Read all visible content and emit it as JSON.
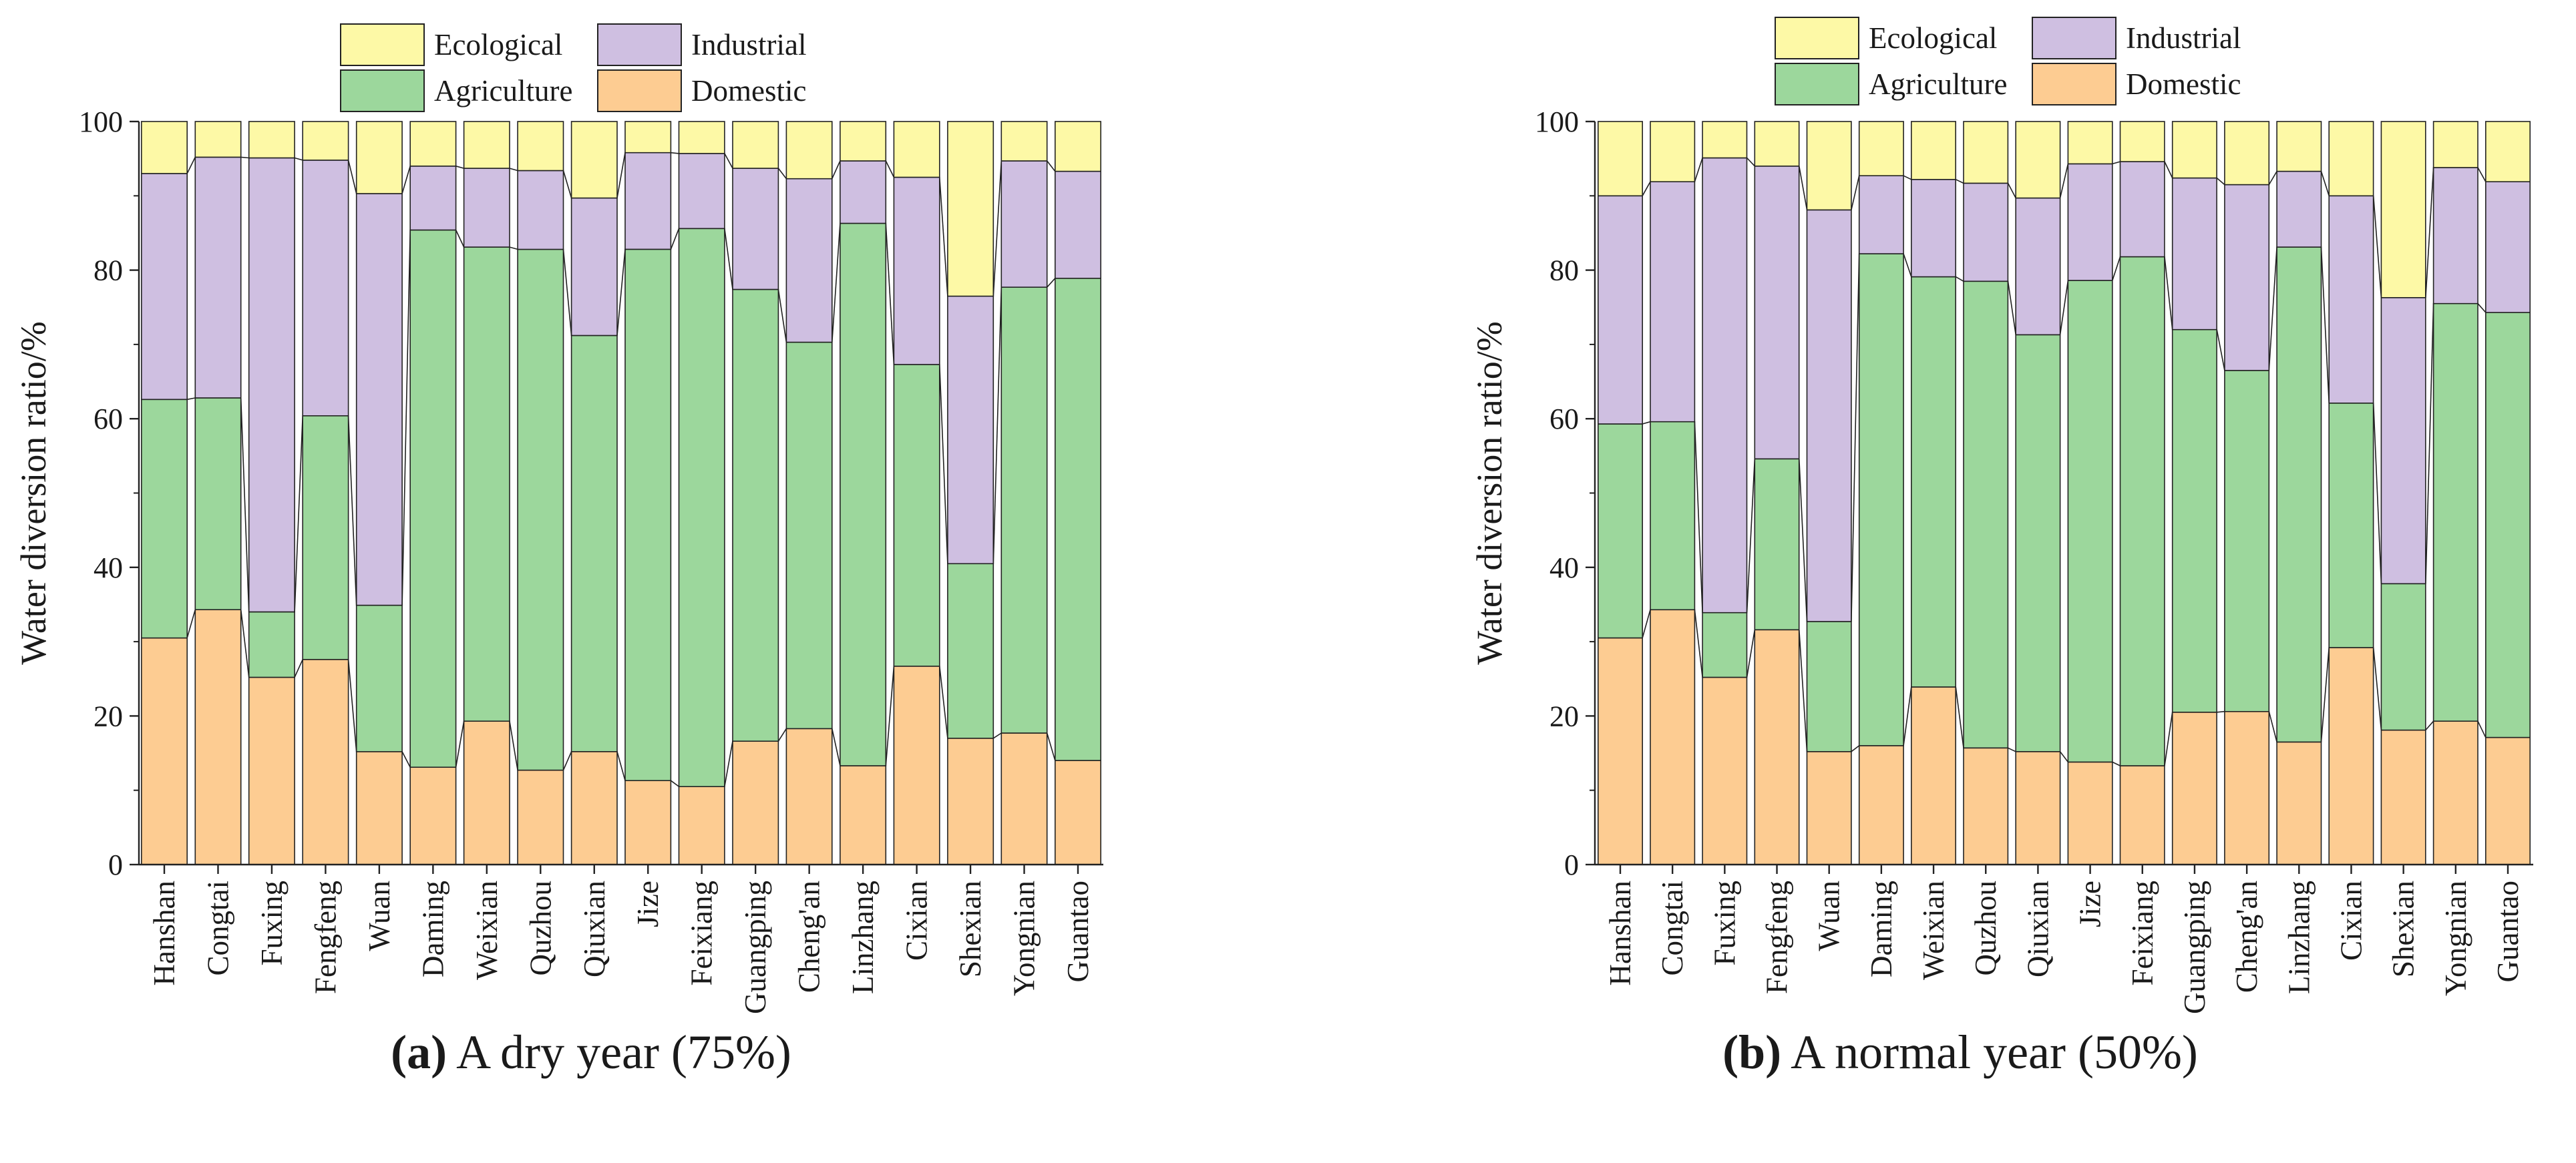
{
  "colors": {
    "Ecological": "#fdf9a6",
    "Industrial": "#cfbfe1",
    "Agriculture": "#9cd79c",
    "Domestic": "#fdcc92"
  },
  "chart_data": [
    {
      "type": "bar",
      "stacked": true,
      "categories": [
        "Hanshan",
        "Congtai",
        "Fuxing",
        "Fengfeng",
        "Wuan",
        "Daming",
        "Weixian",
        "Quzhou",
        "Qiuxian",
        "Jize",
        "Feixiang",
        "Guangping",
        "Cheng'an",
        "Linzhang",
        "Cixian",
        "Shexian",
        "Yongnian",
        "Guantao"
      ],
      "series": [
        {
          "name": "Domestic",
          "values": [
            30.5,
            34.3,
            25.2,
            27.6,
            15.2,
            13.1,
            19.3,
            12.7,
            15.2,
            11.3,
            10.5,
            16.6,
            18.3,
            13.3,
            26.7,
            17.0,
            17.7,
            14.0
          ]
        },
        {
          "name": "Agriculture",
          "values": [
            32.1,
            28.5,
            8.8,
            32.8,
            19.7,
            72.3,
            63.8,
            70.1,
            56.0,
            71.5,
            75.1,
            60.8,
            52.0,
            73.0,
            40.6,
            23.5,
            60.0,
            64.9
          ]
        },
        {
          "name": "Industrial",
          "values": [
            30.4,
            32.4,
            61.1,
            34.4,
            55.4,
            8.6,
            10.6,
            10.6,
            18.5,
            13.0,
            10.1,
            16.3,
            22.0,
            8.4,
            25.2,
            36.0,
            17.0,
            14.4
          ]
        },
        {
          "name": "Ecological",
          "values": [
            7.0,
            4.8,
            4.9,
            5.2,
            9.7,
            6.0,
            6.3,
            6.6,
            10.3,
            4.2,
            4.3,
            6.3,
            7.7,
            5.3,
            7.5,
            23.5,
            5.3,
            6.7
          ]
        }
      ],
      "legend": [
        "Ecological",
        "Industrial",
        "Agriculture",
        "Domestic"
      ],
      "ylabel": "Water diversion ratio/%",
      "xlabel": "",
      "ylim": [
        0,
        100
      ],
      "yticks": [
        "0",
        "20",
        "40",
        "60",
        "80",
        "100"
      ],
      "caption_label": "(a)",
      "caption_text": " A dry year (75%)"
    },
    {
      "type": "bar",
      "stacked": true,
      "categories": [
        "Hanshan",
        "Congtai",
        "Fuxing",
        "Fengfeng",
        "Wuan",
        "Daming",
        "Weixian",
        "Quzhou",
        "Qiuxian",
        "Jize",
        "Feixiang",
        "Guangping",
        "Cheng'an",
        "Linzhang",
        "Cixian",
        "Shexian",
        "Yongnian",
        "Guantao"
      ],
      "series": [
        {
          "name": "Domestic",
          "values": [
            30.5,
            34.3,
            25.2,
            31.6,
            15.2,
            16.0,
            23.9,
            15.7,
            15.2,
            13.8,
            13.3,
            20.5,
            20.6,
            16.5,
            29.2,
            18.1,
            19.3,
            17.1
          ]
        },
        {
          "name": "Agriculture",
          "values": [
            28.8,
            25.3,
            8.7,
            23.0,
            17.5,
            66.2,
            55.2,
            62.8,
            56.1,
            64.8,
            68.5,
            51.5,
            45.9,
            66.6,
            32.9,
            19.7,
            56.2,
            57.2
          ]
        },
        {
          "name": "Industrial",
          "values": [
            30.7,
            32.3,
            61.2,
            39.4,
            55.4,
            10.5,
            13.1,
            13.2,
            18.4,
            15.7,
            12.8,
            20.4,
            25.0,
            10.2,
            27.9,
            38.5,
            18.3,
            17.6
          ]
        },
        {
          "name": "Ecological",
          "values": [
            10.0,
            8.1,
            4.9,
            6.0,
            11.9,
            7.3,
            7.8,
            8.3,
            10.3,
            5.7,
            5.4,
            7.6,
            8.5,
            6.7,
            10.0,
            23.7,
            6.2,
            8.1
          ]
        }
      ],
      "legend": [
        "Ecological",
        "Industrial",
        "Agriculture",
        "Domestic"
      ],
      "ylabel": "Water diversion ratio/%",
      "xlabel": "",
      "ylim": [
        0,
        100
      ],
      "yticks": [
        "0",
        "20",
        "40",
        "60",
        "80",
        "100"
      ],
      "caption_label": "(b)",
      "caption_text": " A normal year (50%)"
    }
  ]
}
